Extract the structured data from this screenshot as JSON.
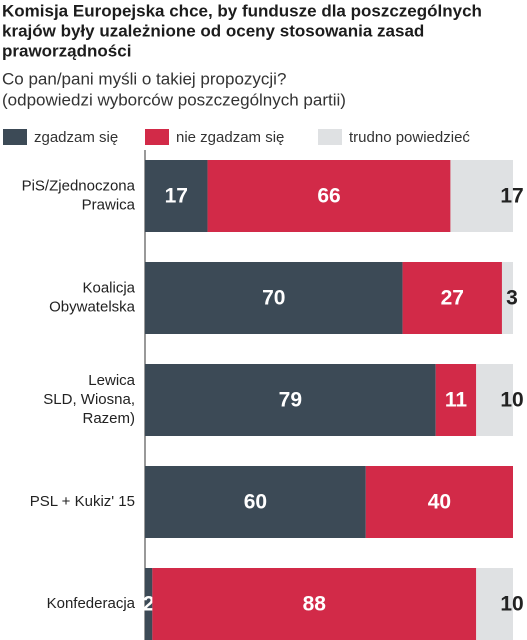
{
  "chart_data": {
    "type": "stacked-bar-horizontal",
    "title": [
      "Komisja Europejska chce, by fundusze dla poszczególnych",
      "krajów były uzależnione od oceny stosowania zasad",
      "praworządności"
    ],
    "subtitle": [
      "Co pan/pani myśli o takiej propozycji?",
      "(odpowiedzi wyborców poszczególnych partii)"
    ],
    "categories": [
      [
        "PiS/Zjednoczona",
        "Prawica"
      ],
      [
        "Koalicja",
        "Obywatelska"
      ],
      [
        "Lewica",
        "SLD, Wiosna,",
        "Razem)"
      ],
      [
        "PSL + Kukiz' 15"
      ],
      [
        "Konfederacja"
      ]
    ],
    "series": [
      {
        "name": "zgadzam się",
        "color": "#3c4a56",
        "values": [
          17,
          70,
          79,
          60,
          2
        ]
      },
      {
        "name": "nie zgadzam się",
        "color": "#d22a48",
        "values": [
          66,
          27,
          11,
          40,
          88
        ]
      },
      {
        "name": "trudno powiedzieć",
        "color": "#dfe1e3",
        "values": [
          17,
          3,
          10,
          0,
          10
        ]
      }
    ],
    "value_labels": [
      [
        "17",
        "70",
        "79",
        "60",
        "2"
      ],
      [
        "66",
        "27",
        "11",
        "40",
        "88"
      ],
      [
        "17",
        "3",
        "10",
        null,
        "10"
      ]
    ],
    "xlim": [
      0,
      100
    ]
  }
}
